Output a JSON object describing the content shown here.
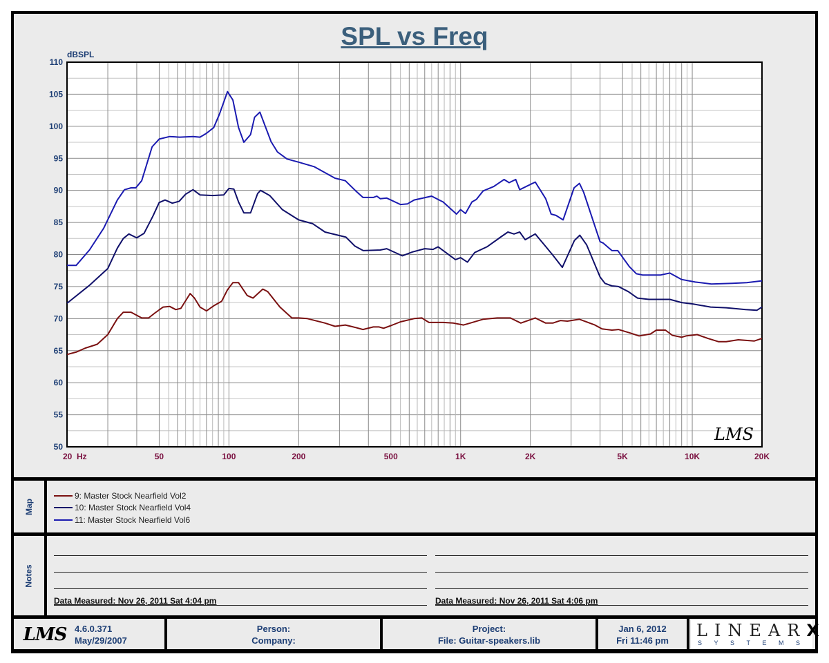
{
  "chart_data": {
    "type": "line",
    "title": "SPL vs Freq",
    "ylabel": "dBSPL",
    "xlabel": "",
    "xscale": "log",
    "xlim": [
      20,
      20000
    ],
    "ylim": [
      50,
      110
    ],
    "grid": true,
    "y_ticks": [
      "110",
      "105",
      "100",
      "95",
      "90",
      "85",
      "80",
      "75",
      "70",
      "65",
      "60",
      "55",
      "50"
    ],
    "y_tick_values": [
      110,
      105,
      100,
      95,
      90,
      85,
      80,
      75,
      70,
      65,
      60,
      55,
      50
    ],
    "x_ticks": [
      {
        "label": "20  Hz",
        "value": 20
      },
      {
        "label": "50",
        "value": 50
      },
      {
        "label": "100",
        "value": 100
      },
      {
        "label": "200",
        "value": 200
      },
      {
        "label": "500",
        "value": 500
      },
      {
        "label": "1K",
        "value": 1000
      },
      {
        "label": "2K",
        "value": 2000
      },
      {
        "label": "5K",
        "value": 5000
      },
      {
        "label": "10K",
        "value": 10000
      },
      {
        "label": "20K",
        "value": 20000
      }
    ],
    "watermark": "LMS",
    "series": [
      {
        "name": "9: Master Stock Nearfield Vol2",
        "color": "#7a1010",
        "points": [
          [
            20,
            64.4
          ],
          [
            22,
            64.8
          ],
          [
            24,
            65.4
          ],
          [
            27,
            66
          ],
          [
            30,
            67.5
          ],
          [
            33,
            70
          ],
          [
            35,
            71
          ],
          [
            37.8,
            71
          ],
          [
            42,
            70.1
          ],
          [
            45,
            70.1
          ],
          [
            48,
            70.9
          ],
          [
            52,
            71.8
          ],
          [
            55.5,
            71.9
          ],
          [
            59,
            71.4
          ],
          [
            62,
            71.6
          ],
          [
            68,
            73.9
          ],
          [
            71,
            73.2
          ],
          [
            75,
            71.8
          ],
          [
            80,
            71.2
          ],
          [
            86,
            72
          ],
          [
            93,
            72.7
          ],
          [
            98.6,
            74.5
          ],
          [
            104,
            75.6
          ],
          [
            110,
            75.6
          ],
          [
            120,
            73.6
          ],
          [
            127,
            73.2
          ],
          [
            140,
            74.6
          ],
          [
            147,
            74.2
          ],
          [
            166,
            71.8
          ],
          [
            187,
            70.1
          ],
          [
            200,
            70.1
          ],
          [
            218,
            70
          ],
          [
            260,
            69.3
          ],
          [
            287,
            68.8
          ],
          [
            318,
            69
          ],
          [
            353,
            68.6
          ],
          [
            379,
            68.3
          ],
          [
            420,
            68.7
          ],
          [
            445,
            68.7
          ],
          [
            465,
            68.5
          ],
          [
            500,
            68.9
          ],
          [
            550,
            69.5
          ],
          [
            630,
            70
          ],
          [
            680,
            70.1
          ],
          [
            730,
            69.4
          ],
          [
            840,
            69.4
          ],
          [
            930,
            69.3
          ],
          [
            1030,
            69
          ],
          [
            1100,
            69.3
          ],
          [
            1250,
            69.9
          ],
          [
            1440,
            70.1
          ],
          [
            1640,
            70.1
          ],
          [
            1820,
            69.3
          ],
          [
            2100,
            70.1
          ],
          [
            2330,
            69.3
          ],
          [
            2500,
            69.3
          ],
          [
            2700,
            69.7
          ],
          [
            2890,
            69.6
          ],
          [
            3260,
            69.9
          ],
          [
            3800,
            69
          ],
          [
            4080,
            68.4
          ],
          [
            4500,
            68.2
          ],
          [
            4800,
            68.3
          ],
          [
            5350,
            67.8
          ],
          [
            5900,
            67.3
          ],
          [
            6600,
            67.6
          ],
          [
            7000,
            68.2
          ],
          [
            7660,
            68.2
          ],
          [
            8200,
            67.4
          ],
          [
            9000,
            67.1
          ],
          [
            9400,
            67.3
          ],
          [
            10500,
            67.5
          ],
          [
            11700,
            66.9
          ],
          [
            13000,
            66.4
          ],
          [
            14000,
            66.4
          ],
          [
            15800,
            66.7
          ],
          [
            18500,
            66.5
          ],
          [
            20000,
            66.9
          ]
        ]
      },
      {
        "name": "10: Master Stock Nearfield Vol4",
        "color": "#10106a",
        "points": [
          [
            20,
            72.4
          ],
          [
            25,
            75.2
          ],
          [
            30,
            77.8
          ],
          [
            33,
            81
          ],
          [
            35,
            82.5
          ],
          [
            37,
            83.2
          ],
          [
            40,
            82.6
          ],
          [
            43,
            83.3
          ],
          [
            47,
            86
          ],
          [
            50,
            88.1
          ],
          [
            53,
            88.5
          ],
          [
            57,
            88
          ],
          [
            61,
            88.3
          ],
          [
            65,
            89.4
          ],
          [
            70,
            90.1
          ],
          [
            75,
            89.3
          ],
          [
            85,
            89.2
          ],
          [
            95,
            89.3
          ],
          [
            100,
            90.3
          ],
          [
            105,
            90.2
          ],
          [
            110,
            88.2
          ],
          [
            116,
            86.5
          ],
          [
            124,
            86.5
          ],
          [
            133,
            89.5
          ],
          [
            137,
            90
          ],
          [
            150,
            89.2
          ],
          [
            170,
            87
          ],
          [
            200,
            85.4
          ],
          [
            230,
            84.8
          ],
          [
            260,
            83.5
          ],
          [
            320,
            82.7
          ],
          [
            350,
            81.3
          ],
          [
            380,
            80.6
          ],
          [
            450,
            80.7
          ],
          [
            480,
            80.9
          ],
          [
            500,
            80.6
          ],
          [
            560,
            79.8
          ],
          [
            620,
            80.4
          ],
          [
            700,
            80.9
          ],
          [
            760,
            80.8
          ],
          [
            800,
            81.2
          ],
          [
            950,
            79.2
          ],
          [
            1000,
            79.5
          ],
          [
            1070,
            78.8
          ],
          [
            1150,
            80.3
          ],
          [
            1300,
            81.2
          ],
          [
            1500,
            82.8
          ],
          [
            1600,
            83.5
          ],
          [
            1700,
            83.2
          ],
          [
            1800,
            83.5
          ],
          [
            1900,
            82.3
          ],
          [
            2100,
            83.2
          ],
          [
            2300,
            81.5
          ],
          [
            2500,
            79.9
          ],
          [
            2750,
            78
          ],
          [
            3100,
            82.2
          ],
          [
            3270,
            83
          ],
          [
            3500,
            81.5
          ],
          [
            4000,
            76.5
          ],
          [
            4200,
            75.5
          ],
          [
            4500,
            75.1
          ],
          [
            4800,
            75
          ],
          [
            5300,
            74.2
          ],
          [
            5800,
            73.2
          ],
          [
            6500,
            73
          ],
          [
            8000,
            73
          ],
          [
            9000,
            72.5
          ],
          [
            10000,
            72.3
          ],
          [
            12000,
            71.8
          ],
          [
            14000,
            71.7
          ],
          [
            17000,
            71.4
          ],
          [
            19000,
            71.3
          ],
          [
            20000,
            71.8
          ]
        ]
      },
      {
        "name": "11: Master Stock Nearfield Vol6",
        "color": "#1a1ab0",
        "points": [
          [
            20,
            78.3
          ],
          [
            21.9,
            78.3
          ],
          [
            25,
            80.7
          ],
          [
            28.8,
            84.1
          ],
          [
            33,
            88.5
          ],
          [
            35.4,
            90.1
          ],
          [
            37.8,
            90.4
          ],
          [
            39.6,
            90.4
          ],
          [
            42,
            91.5
          ],
          [
            46.6,
            96.8
          ],
          [
            50,
            98
          ],
          [
            55.5,
            98.4
          ],
          [
            61.3,
            98.3
          ],
          [
            70,
            98.4
          ],
          [
            75,
            98.3
          ],
          [
            80,
            98.9
          ],
          [
            86,
            99.8
          ],
          [
            91,
            101.9
          ],
          [
            98.6,
            105.4
          ],
          [
            104,
            104.1
          ],
          [
            110,
            99.8
          ],
          [
            116,
            97.5
          ],
          [
            124,
            98.7
          ],
          [
            129,
            101.4
          ],
          [
            136,
            102.2
          ],
          [
            152,
            97.6
          ],
          [
            162,
            96
          ],
          [
            178,
            94.9
          ],
          [
            200,
            94.4
          ],
          [
            233,
            93.7
          ],
          [
            287,
            91.9
          ],
          [
            318,
            91.5
          ],
          [
            353,
            89.9
          ],
          [
            379,
            88.9
          ],
          [
            420,
            88.9
          ],
          [
            435,
            89.1
          ],
          [
            450,
            88.7
          ],
          [
            480,
            88.8
          ],
          [
            550,
            87.8
          ],
          [
            590,
            87.9
          ],
          [
            630,
            88.5
          ],
          [
            730,
            89
          ],
          [
            750,
            89.1
          ],
          [
            840,
            88.2
          ],
          [
            960,
            86.3
          ],
          [
            1000,
            87
          ],
          [
            1050,
            86.4
          ],
          [
            1120,
            88.2
          ],
          [
            1170,
            88.6
          ],
          [
            1250,
            89.9
          ],
          [
            1390,
            90.6
          ],
          [
            1540,
            91.7
          ],
          [
            1620,
            91.2
          ],
          [
            1730,
            91.7
          ],
          [
            1800,
            90.1
          ],
          [
            2100,
            91.3
          ],
          [
            2330,
            88.7
          ],
          [
            2460,
            86.3
          ],
          [
            2580,
            86.1
          ],
          [
            2770,
            85.4
          ],
          [
            3090,
            90.4
          ],
          [
            3260,
            91.1
          ],
          [
            3400,
            89.7
          ],
          [
            4000,
            82
          ],
          [
            4120,
            81.8
          ],
          [
            4500,
            80.6
          ],
          [
            4770,
            80.6
          ],
          [
            5350,
            78.1
          ],
          [
            5740,
            77
          ],
          [
            6100,
            76.8
          ],
          [
            7300,
            76.8
          ],
          [
            8000,
            77.1
          ],
          [
            9000,
            76.1
          ],
          [
            10300,
            75.7
          ],
          [
            12100,
            75.4
          ],
          [
            14900,
            75.5
          ],
          [
            17200,
            75.6
          ],
          [
            20000,
            75.9
          ]
        ]
      }
    ]
  },
  "map": {
    "label": "Map"
  },
  "notes": {
    "label": "Notes",
    "left_measured": "Data Measured: Nov 26, 2011  Sat  4:04 pm",
    "right_measured": "Data Measured: Nov 26, 2011  Sat  4:06 pm"
  },
  "footer": {
    "logo": "LMS",
    "version": "4.6.0.371",
    "version_date": "May/29/2007",
    "person": "Person:",
    "company": "Company:",
    "project": "Project:",
    "file": "File: Guitar-speakers.lib",
    "date": "Jan  6, 2012",
    "time": "Fri 11:46 pm",
    "brand": "LINEAR",
    "brand_x": "X",
    "brand_sub": "SYSTEMS"
  }
}
